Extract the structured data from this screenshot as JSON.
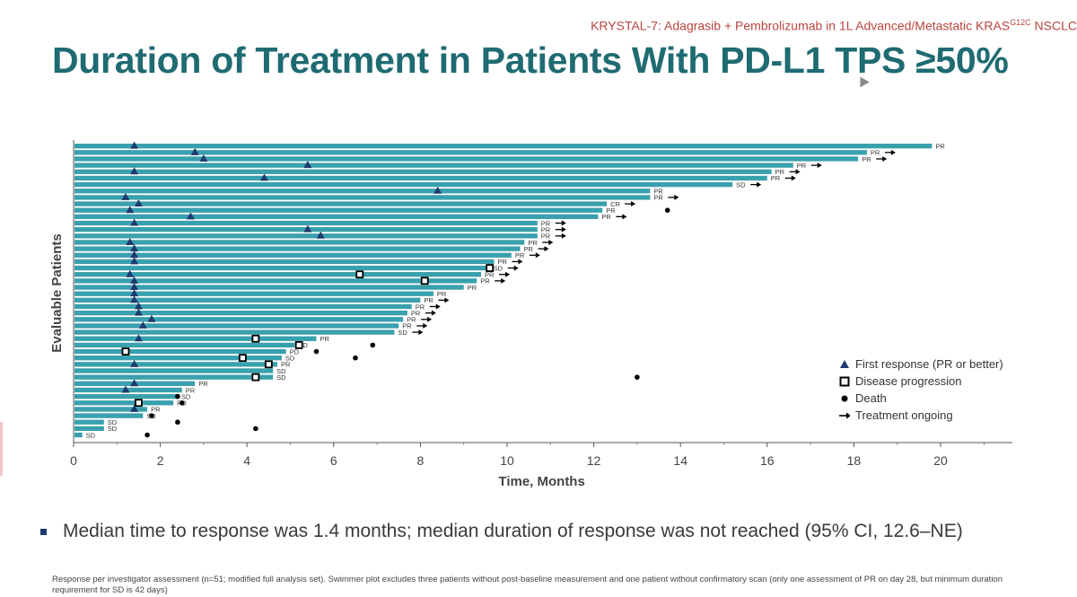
{
  "header": {
    "trial_line": "KRYSTAL-7: Adagrasib + Pembrolizumab in 1L Advanced/Metastatic KRAS",
    "trial_sup": "G12C",
    "trial_tail": " NSCLC",
    "title": "Duration of Treatment in Patients With PD-L1 TPS ≥50%"
  },
  "bullet": "Median time to response was 1.4 months; median duration of response was not reached (95% CI, 12.6–NE)",
  "footnote": "Response per investigator assessment (n=51; modified full analysis set). Swimmer plot excludes three patients without post-baseline measurement and one patient without confirmatory scan (only one assessment of PR on day 28, but minimum duration requirement for SD is 42 days)",
  "legend": {
    "first_response": "First response (PR or better)",
    "progression": "Disease progression",
    "death": "Death",
    "ongoing": "Treatment ongoing"
  },
  "colors": {
    "bar": "#3aa0ad",
    "marker": "#1e3a6e",
    "title": "#1f6b72",
    "topline": "#b9443e"
  },
  "chart_data": {
    "type": "swimmer",
    "xlabel": "Time, Months",
    "ylabel": "Evaluable Patients",
    "xlim": [
      0,
      21.6
    ],
    "xticks": [
      0,
      2,
      4,
      6,
      8,
      10,
      12,
      14,
      16,
      18,
      20
    ],
    "patients": [
      {
        "duration": 19.8,
        "label": "PR",
        "response": 1.4
      },
      {
        "duration": 18.3,
        "label": "PR",
        "response": 2.8,
        "ongoing": true
      },
      {
        "duration": 18.1,
        "label": "PR",
        "response": 3.0,
        "ongoing": true
      },
      {
        "duration": 16.6,
        "label": "PR",
        "response": 5.4,
        "ongoing": true
      },
      {
        "duration": 16.1,
        "label": "PR",
        "response": 1.4,
        "ongoing": true
      },
      {
        "duration": 16.0,
        "label": "PR",
        "response": 4.4,
        "ongoing": true
      },
      {
        "duration": 15.2,
        "label": "SD",
        "ongoing": true
      },
      {
        "duration": 13.3,
        "label": "PR",
        "response": 8.4
      },
      {
        "duration": 13.3,
        "label": "PR",
        "response": 1.2,
        "ongoing": true
      },
      {
        "duration": 12.3,
        "label": "CR",
        "response": 1.5,
        "ongoing": true
      },
      {
        "duration": 12.2,
        "label": "PR",
        "response": 1.3,
        "death": 13.7
      },
      {
        "duration": 12.1,
        "label": "PR",
        "response": 2.7,
        "ongoing": true
      },
      {
        "duration": 10.7,
        "label": "PR",
        "response": 1.4,
        "ongoing": true
      },
      {
        "duration": 10.7,
        "label": "PR",
        "response": 5.4,
        "ongoing": true
      },
      {
        "duration": 10.7,
        "label": "PR",
        "response": 5.7,
        "ongoing": true
      },
      {
        "duration": 10.4,
        "label": "PR",
        "response": 1.3,
        "ongoing": true
      },
      {
        "duration": 10.3,
        "label": "PR",
        "response": 1.4,
        "ongoing": true
      },
      {
        "duration": 10.1,
        "label": "PR",
        "response": 1.4,
        "ongoing": true
      },
      {
        "duration": 9.7,
        "label": "PR",
        "response": 1.4,
        "ongoing": true
      },
      {
        "duration": 9.6,
        "label": "SD",
        "progression": 9.6,
        "ongoing": true
      },
      {
        "duration": 9.4,
        "label": "PR",
        "response": 1.3,
        "progression": 6.6,
        "ongoing": true
      },
      {
        "duration": 9.3,
        "label": "PR",
        "response": 1.4,
        "progression": 8.1,
        "ongoing": true
      },
      {
        "duration": 9.0,
        "label": "PR",
        "response": 1.4
      },
      {
        "duration": 8.3,
        "label": "PR",
        "response": 1.4
      },
      {
        "duration": 8.0,
        "label": "PR",
        "response": 1.4,
        "ongoing": true
      },
      {
        "duration": 7.8,
        "label": "PR",
        "response": 1.5,
        "ongoing": true
      },
      {
        "duration": 7.7,
        "label": "PR",
        "response": 1.5,
        "ongoing": true
      },
      {
        "duration": 7.6,
        "label": "PR",
        "response": 1.8,
        "ongoing": true
      },
      {
        "duration": 7.5,
        "label": "PR",
        "response": 1.6,
        "ongoing": true
      },
      {
        "duration": 7.4,
        "label": "SD",
        "ongoing": true
      },
      {
        "duration": 5.6,
        "label": "PR",
        "response": 1.5,
        "progression": 4.2
      },
      {
        "duration": 5.1,
        "label": "SD",
        "progression": 5.2,
        "death": 6.9
      },
      {
        "duration": 4.9,
        "label": "PD",
        "progression": 1.2,
        "death": 5.6
      },
      {
        "duration": 4.8,
        "label": "SD",
        "progression": 3.9,
        "death": 6.5
      },
      {
        "duration": 4.7,
        "label": "PR",
        "response": 1.4,
        "progression": 4.5
      },
      {
        "duration": 4.6,
        "label": "SD"
      },
      {
        "duration": 4.6,
        "label": "SD",
        "progression": 4.2,
        "death": 13.0
      },
      {
        "duration": 2.8,
        "label": "PR",
        "response": 1.4
      },
      {
        "duration": 2.5,
        "label": "PR",
        "response": 1.2
      },
      {
        "duration": 2.4,
        "label": "SD",
        "death": 2.4
      },
      {
        "duration": 2.3,
        "label": "PD",
        "progression": 1.5,
        "death": 2.5
      },
      {
        "duration": 1.7,
        "label": "PR",
        "response": 1.4
      },
      {
        "duration": 1.6,
        "label": "SD",
        "death": 1.8
      },
      {
        "duration": 0.7,
        "label": "SD",
        "death": 2.4
      },
      {
        "duration": 0.7,
        "label": "SD",
        "death": 4.2
      },
      {
        "duration": 0.2,
        "label": "SD",
        "death": 1.7
      }
    ]
  }
}
